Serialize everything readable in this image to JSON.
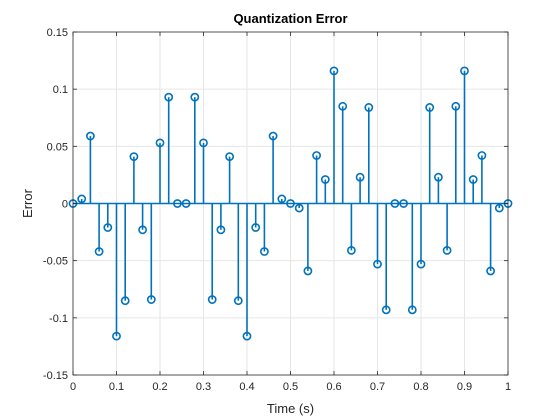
{
  "chart_data": {
    "type": "stem",
    "title": "Quantization Error",
    "xlabel": "Time (s)",
    "ylabel": "Error",
    "xlim": [
      0,
      1
    ],
    "ylim": [
      -0.15,
      0.15
    ],
    "grid": true,
    "color": "#0072BD",
    "x_ticks": [
      0,
      0.1,
      0.2,
      0.3,
      0.4,
      0.5,
      0.6,
      0.7,
      0.8,
      0.9,
      1
    ],
    "x_tick_labels": [
      "0",
      "0.1",
      "0.2",
      "0.3",
      "0.4",
      "0.5",
      "0.6",
      "0.7",
      "0.8",
      "0.9",
      "1"
    ],
    "y_ticks": [
      -0.15,
      -0.1,
      -0.05,
      0,
      0.05,
      0.1,
      0.15
    ],
    "y_tick_labels": [
      "-0.15",
      "-0.1",
      "-0.05",
      "0",
      "0.05",
      "0.1",
      "0.15"
    ],
    "x": [
      0,
      0.02,
      0.04,
      0.06,
      0.08,
      0.1,
      0.12,
      0.14,
      0.16,
      0.18,
      0.2,
      0.22,
      0.24,
      0.26,
      0.28,
      0.3,
      0.32,
      0.34,
      0.36,
      0.38,
      0.4,
      0.42,
      0.44,
      0.46,
      0.48,
      0.5,
      0.52,
      0.54,
      0.56,
      0.58,
      0.6,
      0.62,
      0.64,
      0.66,
      0.68,
      0.7,
      0.72,
      0.74,
      0.76,
      0.78,
      0.8,
      0.82,
      0.84,
      0.86,
      0.88,
      0.9,
      0.92,
      0.94,
      0.96,
      0.98,
      1
    ],
    "y": [
      0,
      0.004,
      0.059,
      -0.042,
      -0.021,
      -0.116,
      -0.085,
      0.041,
      -0.023,
      -0.084,
      0.053,
      0.093,
      0,
      0,
      0.093,
      0.053,
      -0.084,
      -0.023,
      0.041,
      -0.085,
      -0.116,
      -0.021,
      -0.042,
      0.059,
      0.004,
      0,
      -0.004,
      -0.059,
      0.042,
      0.021,
      0.116,
      0.085,
      -0.041,
      0.023,
      0.084,
      -0.053,
      -0.093,
      0,
      0,
      -0.093,
      -0.053,
      0.084,
      0.023,
      -0.041,
      0.085,
      0.116,
      0.021,
      0.042,
      -0.059,
      -0.004,
      0
    ]
  }
}
